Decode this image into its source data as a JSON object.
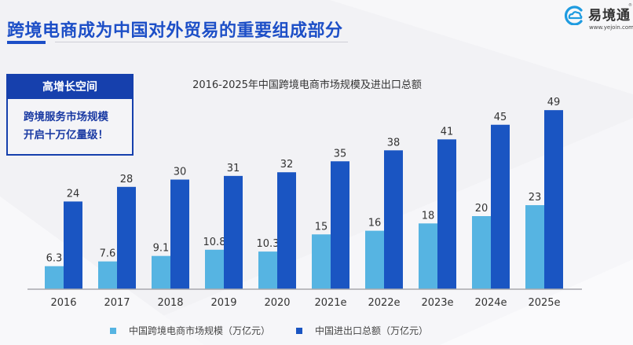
{
  "header": {
    "title": "跨境电商成为中国对外贸易的重要组成部分",
    "logo_name": "易境通",
    "logo_url": "www.yejoin.com",
    "logo_reg": "®",
    "accent_color": "#1d4fc7"
  },
  "callout": {
    "header": "高增长空间",
    "line1": "跨境服务市场规模",
    "line2": "开启十万亿量级！"
  },
  "chart_data": {
    "type": "bar",
    "title": "2016-2025年中国跨境电商市场规模及进出口总额",
    "xlabel": "",
    "ylabel": "",
    "ylim": [
      0,
      50
    ],
    "grid": false,
    "legend_position": "bottom",
    "categories": [
      "2016",
      "2017",
      "2018",
      "2019",
      "2020",
      "2021e",
      "2022e",
      "2023e",
      "2024e",
      "2025e"
    ],
    "series": [
      {
        "name": "中国跨境电商市场规模（万亿元）",
        "color": "#56b4e2",
        "values": [
          6.3,
          7.6,
          9.1,
          10.8,
          10.3,
          15,
          16,
          18,
          20,
          23
        ],
        "labels": [
          "6.3",
          "7.6",
          "9.1",
          "10.8",
          "10.3",
          "15",
          "16",
          "18",
          "20",
          "23"
        ]
      },
      {
        "name": "中国进出口总额（万亿元）",
        "color": "#1a55c2",
        "values": [
          24,
          28,
          30,
          31,
          32,
          35,
          38,
          41,
          45,
          49
        ],
        "labels": [
          "24",
          "28",
          "30",
          "31",
          "32",
          "35",
          "38",
          "41",
          "45",
          "49"
        ]
      }
    ]
  }
}
